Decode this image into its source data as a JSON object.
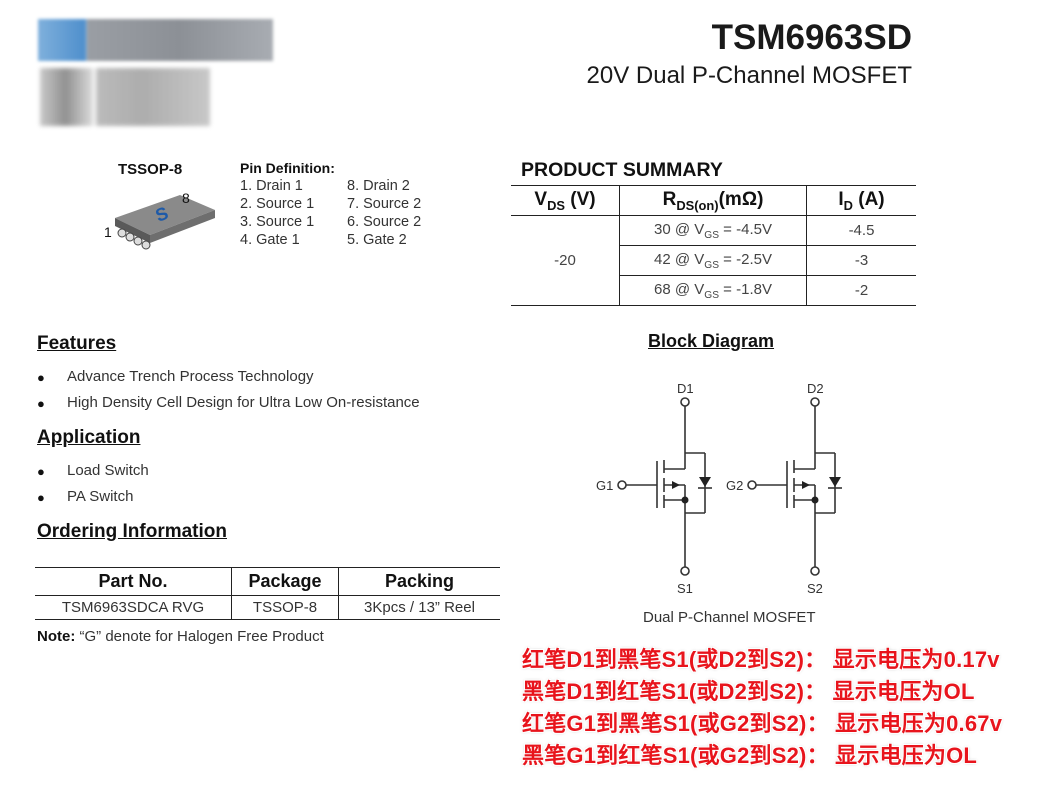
{
  "header": {
    "title": "TSM6963SD",
    "subtitle": "20V Dual P-Channel MOSFET"
  },
  "logo": {
    "note": "blurred company logo"
  },
  "package": {
    "label": "TSSOP-8",
    "pin1": "1",
    "pin8": "8"
  },
  "pins": {
    "title": "Pin Definition:",
    "left": [
      "1. Drain 1",
      "2. Source 1",
      "3. Source 1",
      "4. Gate 1"
    ],
    "right": [
      "8. Drain 2",
      "7. Source 2",
      "6. Source 2",
      "5. Gate 2"
    ]
  },
  "summary": {
    "title": "PRODUCT SUMMARY",
    "headers": {
      "vds": "V",
      "vds_sub": "DS",
      "vds_unit": " (V)",
      "rds": "R",
      "rds_sub": "DS(on)",
      "rds_unit": "(mΩ)",
      "id": "I",
      "id_sub": "D",
      "id_unit": " (A)"
    },
    "vds_value": "-20",
    "rows": [
      {
        "r": "30 @ V",
        "sub": "GS",
        "cond": " = -4.5V",
        "id": "-4.5"
      },
      {
        "r": "42 @ V",
        "sub": "GS",
        "cond": " = -2.5V",
        "id": "-3"
      },
      {
        "r": "68 @ V",
        "sub": "GS",
        "cond": " = -1.8V",
        "id": "-2"
      }
    ]
  },
  "features": {
    "title": "Features",
    "items": [
      "Advance Trench Process Technology",
      "High Density Cell Design for Ultra Low On-resistance"
    ]
  },
  "application": {
    "title": "Application",
    "items": [
      "Load Switch",
      "PA Switch"
    ]
  },
  "ordering": {
    "title": "Ordering Information",
    "headers": [
      "Part No.",
      "Package",
      "Packing"
    ],
    "row": [
      "TSM6963SDCA RVG",
      "TSSOP-8",
      "3Kpcs / 13” Reel"
    ],
    "note_label": "Note:",
    "note_text": " “G” denote for Halogen Free Product"
  },
  "block": {
    "title": "Block Diagram",
    "caption": "Dual P-Channel MOSFET",
    "labels": {
      "d1": "D1",
      "d2": "D2",
      "g1": "G1",
      "g2": "G2",
      "s1": "S1",
      "s2": "S2"
    }
  },
  "annotations": {
    "color": "#e8141c",
    "lines": [
      "红笔D1到黑笔S1(或D2到S2)： 显示电压为0.17v",
      "黑笔D1到红笔S1(或D2到S2)： 显示电压为OL",
      "红笔G1到黑笔S1(或G2到S2)： 显示电压为0.67v",
      "黑笔G1到红笔S1(或G2到S2)： 显示电压为OL"
    ]
  }
}
